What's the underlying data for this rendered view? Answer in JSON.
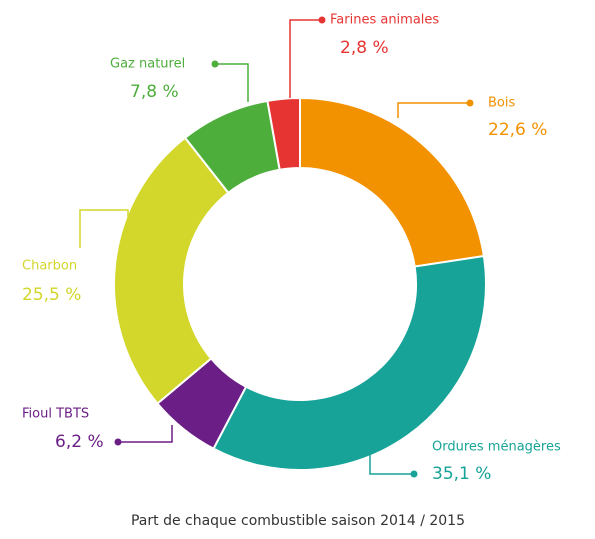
{
  "chart_data": {
    "type": "donut",
    "title": "Part de chaque combustible saison 2014 / 2015",
    "categories": [
      "Bois",
      "Ordures ménagères",
      "Fioul TBTS",
      "Charbon",
      "Gaz naturel",
      "Farines animales"
    ],
    "values": [
      22.6,
      35.1,
      6.2,
      25.5,
      7.8,
      2.8
    ],
    "value_labels": [
      "22,6 %",
      "35,1 %",
      "6,2 %",
      "25,5 %",
      "7,8 %",
      "2,8 %"
    ],
    "colors": [
      "#f39200",
      "#17a398",
      "#6b1f86",
      "#d3d62b",
      "#4dae3c",
      "#e63432"
    ]
  }
}
